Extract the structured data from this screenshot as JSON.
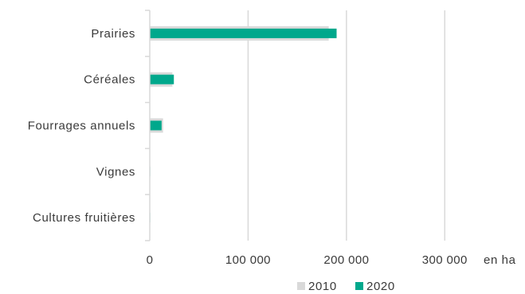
{
  "chart_data": {
    "type": "bar",
    "orientation": "horizontal",
    "categories": [
      "Prairies",
      "Céréales",
      "Fourrages annuels",
      "Vignes",
      "Cultures fruitières"
    ],
    "series": [
      {
        "name": "2010",
        "values": [
          182000,
          23000,
          13500,
          300,
          100
        ],
        "color": "#d9d9d9"
      },
      {
        "name": "2020",
        "values": [
          190000,
          24500,
          12000,
          400,
          100
        ],
        "color": "#00a88c"
      }
    ],
    "xlim": [
      0,
      350000
    ],
    "x_ticks": [
      0,
      100000,
      200000,
      300000
    ],
    "x_tick_labels": [
      "0",
      "100 000",
      "200 000",
      "300 000"
    ],
    "unit": "en ha",
    "grid": true,
    "legend_position": "bottom"
  }
}
